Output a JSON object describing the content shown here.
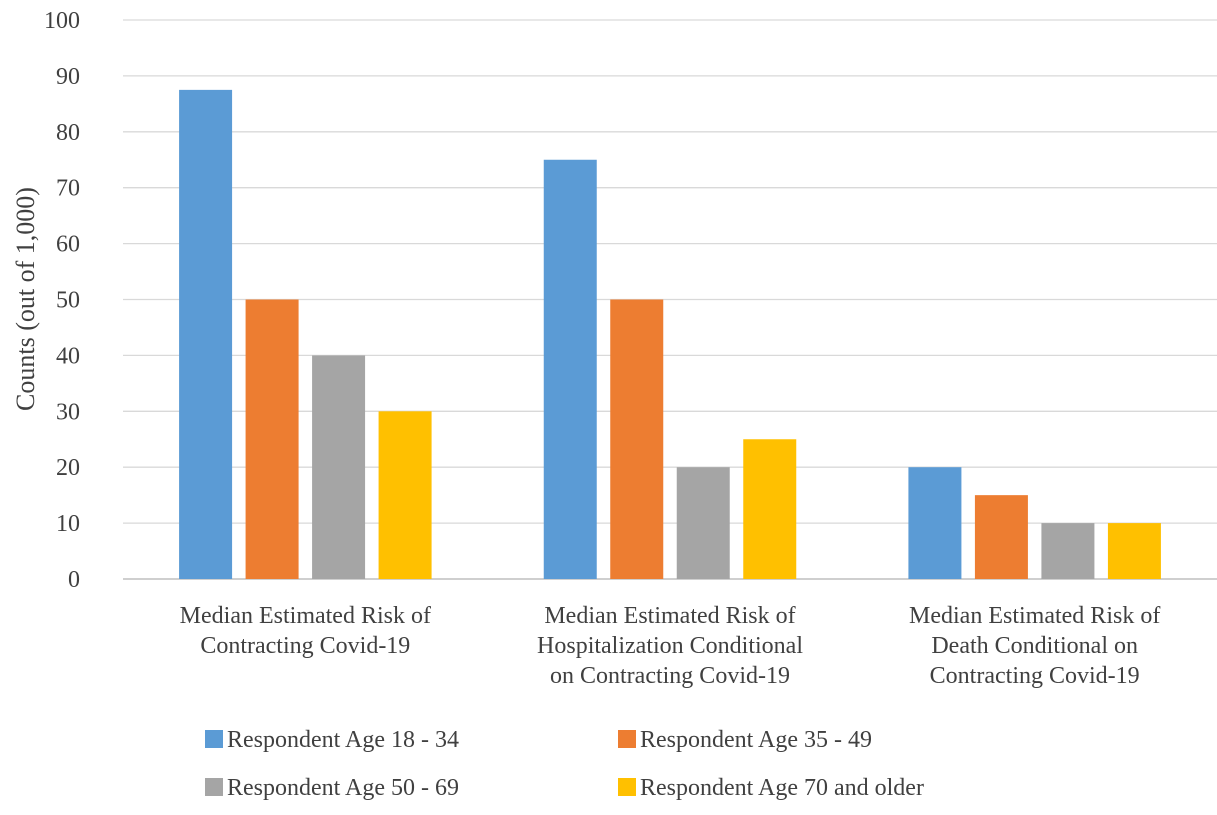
{
  "chart_data": {
    "type": "bar",
    "title": "",
    "xlabel": "",
    "ylabel": "Counts (out of 1,000)",
    "ylim": [
      0,
      100
    ],
    "yticks": [
      0,
      10,
      20,
      30,
      40,
      50,
      60,
      70,
      80,
      90,
      100
    ],
    "grid": true,
    "legend_position": "bottom",
    "categories": [
      [
        "Median Estimated Risk of",
        "Contracting Covid-19"
      ],
      [
        "Median Estimated Risk of",
        "Hospitalization Conditional",
        "on Contracting Covid-19"
      ],
      [
        "Median Estimated Risk of",
        "Death Conditional on",
        "Contracting Covid-19"
      ]
    ],
    "series": [
      {
        "name": "Respondent Age 18 - 34",
        "color": "#5b9bd5",
        "values": [
          87.5,
          75,
          20
        ]
      },
      {
        "name": "Respondent Age 35 - 49",
        "color": "#ed7d31",
        "values": [
          50,
          50,
          15
        ]
      },
      {
        "name": "Respondent Age 50 - 69",
        "color": "#a5a5a5",
        "values": [
          40,
          20,
          10
        ]
      },
      {
        "name": "Respondent Age 70 and older",
        "color": "#ffc000",
        "values": [
          30,
          25,
          10
        ]
      }
    ]
  }
}
